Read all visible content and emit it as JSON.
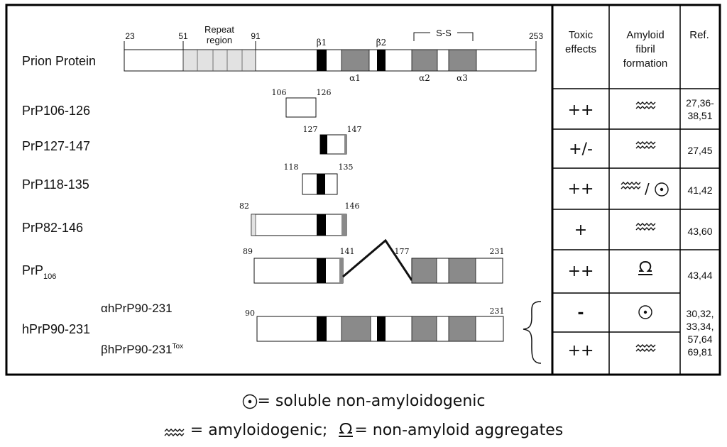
{
  "table_headers": {
    "toxic": "Toxic effects",
    "amyloid": "Amyloid fibril formation",
    "ref": "Ref."
  },
  "prion": {
    "label": "Prion Protein",
    "pos_start": "23",
    "pos_51": "51",
    "pos_91": "91",
    "pos_end": "253",
    "repeat_label": "Repeat region",
    "ss_label": "S-S",
    "b1": "β1",
    "b2": "β2",
    "a1": "α1",
    "a2": "α2",
    "a3": "α3"
  },
  "rows": [
    {
      "label": "PrP106-126",
      "start": "106",
      "end": "126",
      "toxic": "++",
      "amyloid": "amyloidogenic",
      "ref": "27,36-38,51"
    },
    {
      "label": "PrP127-147",
      "start": "127",
      "end": "147",
      "toxic": "+/-",
      "amyloid": "amyloidogenic",
      "ref": "27,45"
    },
    {
      "label": "PrP118-135",
      "start": "118",
      "end": "135",
      "toxic": "++",
      "amyloid": "amyloidogenic/soluble",
      "ref": "41,42"
    },
    {
      "label": "PrP82-146",
      "start": "82",
      "end": "146",
      "toxic": "+",
      "amyloid": "amyloidogenic",
      "ref": "43,60"
    },
    {
      "label": "PrP",
      "label_sub": "106",
      "start": "89",
      "mid1": "141",
      "mid2": "177",
      "end": "231",
      "toxic": "++",
      "amyloid": "non-amyloid aggregates",
      "ref": "43,44"
    },
    {
      "label": "hPrP90-231",
      "alpha_label": "αhPrP90-231",
      "beta_label": "βhPrP90-231",
      "beta_sup": "Tox",
      "start": "90",
      "end": "231",
      "alpha_toxic": "-",
      "beta_toxic": "++",
      "alpha_amyloid": "soluble",
      "beta_amyloid": "amyloidogenic",
      "ref": "30,32, 33,34, 57,64 69,81"
    }
  ],
  "legend": {
    "soluble": "= soluble non-amyloidogenic",
    "amyloidogenic": "= amyloidogenic;",
    "non_amyloid": "= non-amyloid aggregates"
  },
  "colors": {
    "helix": "#8a8a8a",
    "repeat": "#e2e2e2",
    "strand": "#000000"
  }
}
